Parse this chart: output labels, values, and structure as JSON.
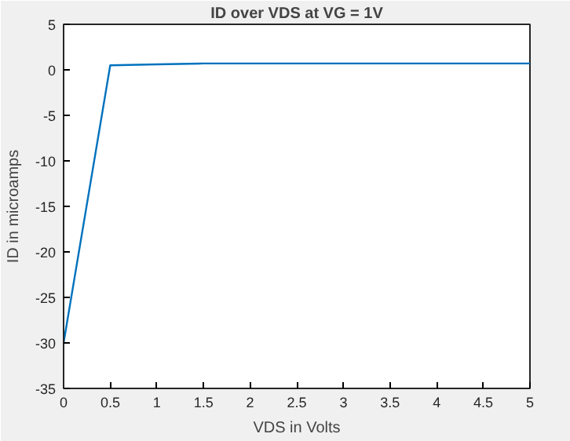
{
  "chart_data": {
    "type": "line",
    "title": "ID over VDS at VG = 1V",
    "xlabel": "VDS in Volts",
    "ylabel": "ID in microamps",
    "x": [
      0,
      0.5,
      1,
      1.5,
      2,
      2.5,
      3,
      3.5,
      4,
      4.5,
      5
    ],
    "series": [
      {
        "color": "#0072bd",
        "values": [
          -30,
          0.5,
          0.6,
          0.7,
          0.7,
          0.7,
          0.7,
          0.7,
          0.7,
          0.7,
          0.7
        ]
      }
    ],
    "xlim": [
      0,
      5
    ],
    "ylim": [
      -35,
      5
    ],
    "xticks": [
      0,
      0.5,
      1,
      1.5,
      2,
      2.5,
      3,
      3.5,
      4,
      4.5,
      5
    ],
    "yticks": [
      -35,
      -30,
      -25,
      -20,
      -15,
      -10,
      -5,
      0,
      5
    ],
    "grid": false
  }
}
